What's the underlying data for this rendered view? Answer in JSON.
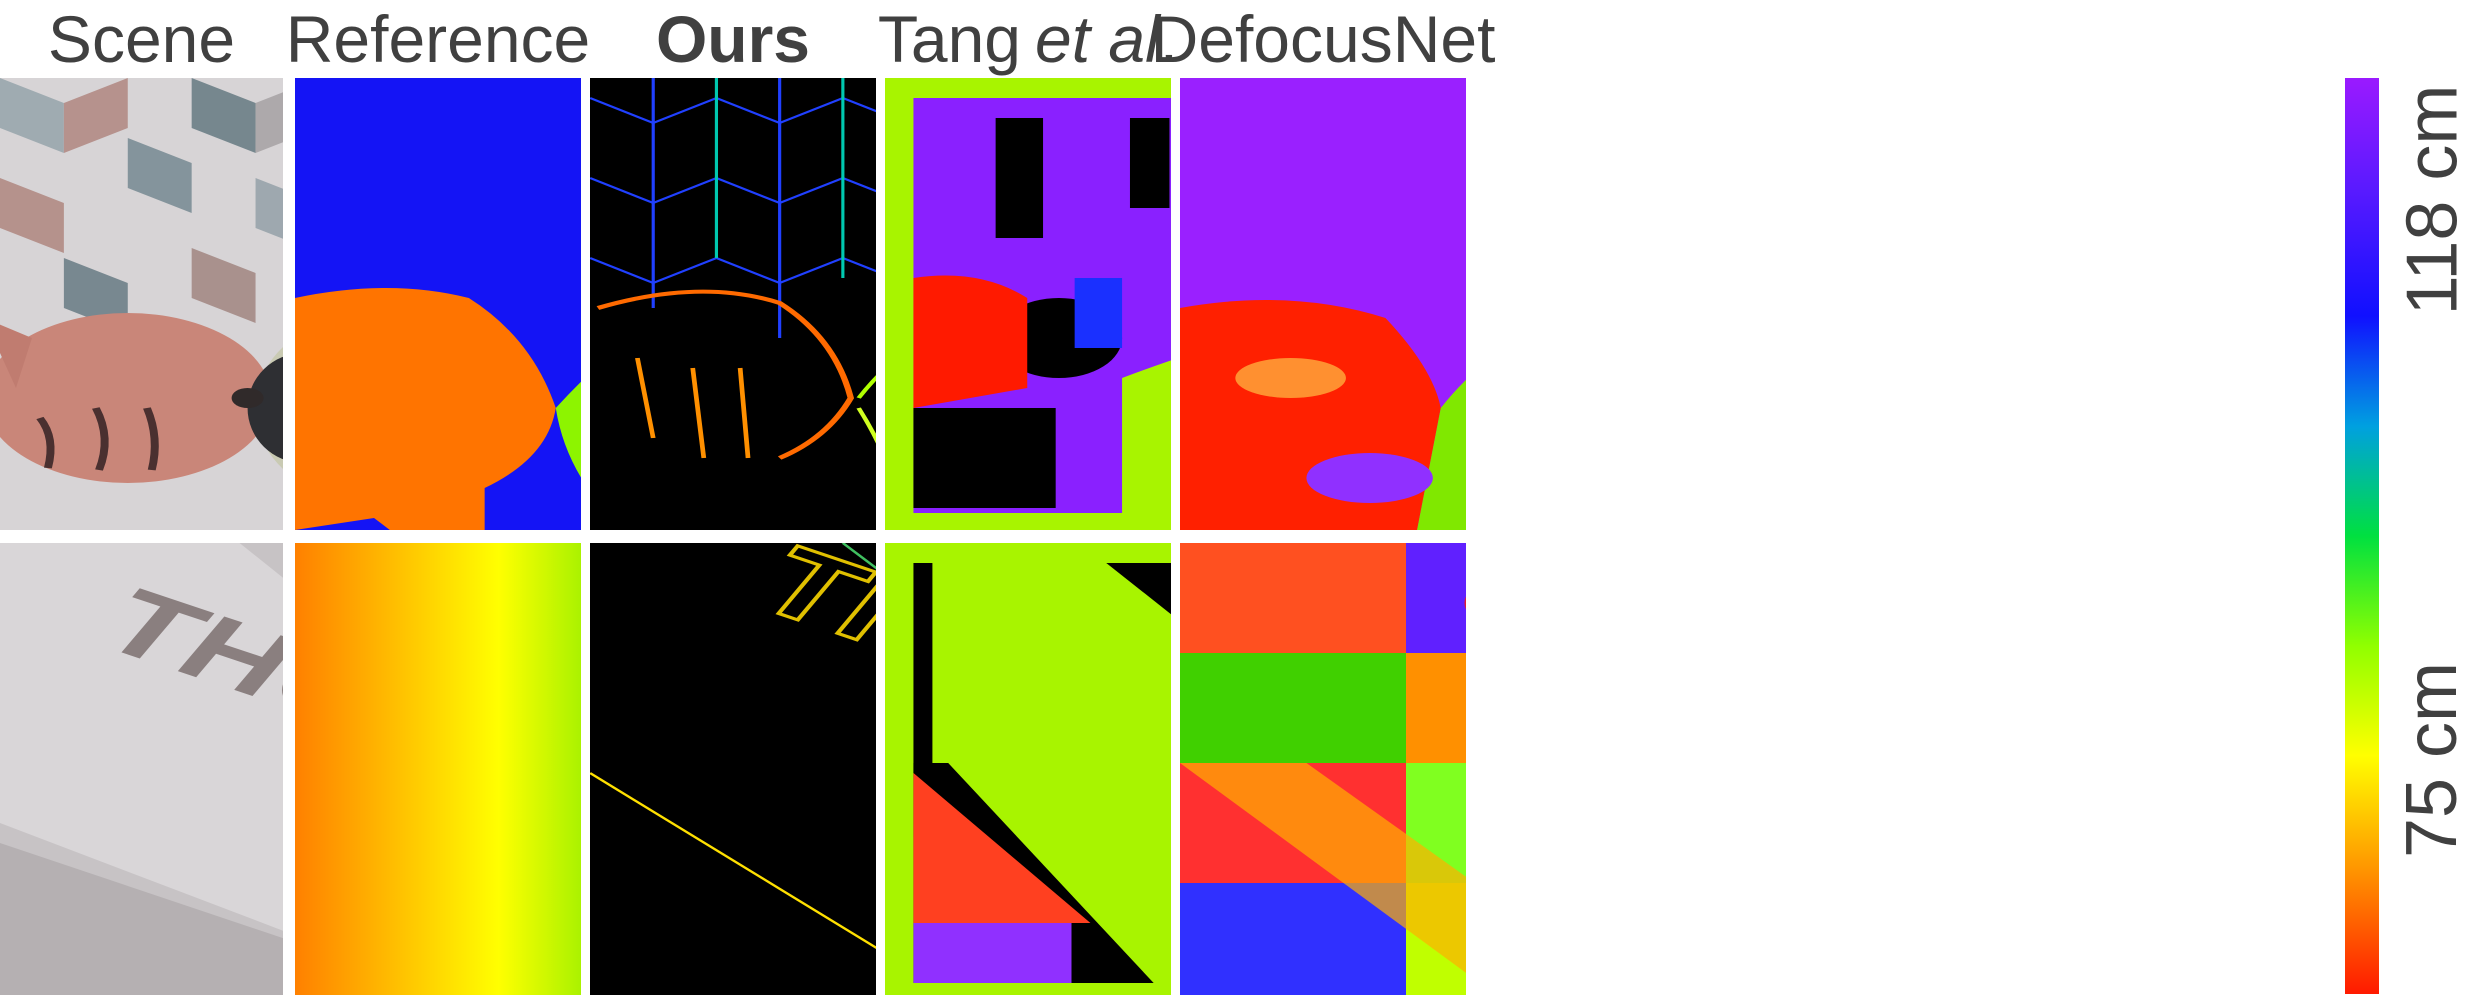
{
  "figure": {
    "columns": [
      {
        "key": "scene",
        "label": "Scene",
        "style": "normal"
      },
      {
        "key": "reference",
        "label": "Reference",
        "style": "normal"
      },
      {
        "key": "ours",
        "label": "Ours",
        "style": "bold"
      },
      {
        "key": "tang",
        "label_prefix": "Tang ",
        "label_italic": "et al",
        "label_suffix": ".",
        "style": "mixed"
      },
      {
        "key": "defocusnet",
        "label": "DefocusNet",
        "style": "normal"
      }
    ],
    "rows": [
      {
        "key": "fish",
        "scene_subject": "fish"
      },
      {
        "key": "thorlabs",
        "scene_subject": "THORLABS",
        "scene_text": "THORLABS"
      }
    ],
    "colorbar": {
      "top_label": "118 cm",
      "bottom_label": "75 cm",
      "colors": [
        "#9a1aff",
        "#1010ff",
        "#00e040",
        "#ffff00",
        "#ff1a00"
      ]
    }
  }
}
